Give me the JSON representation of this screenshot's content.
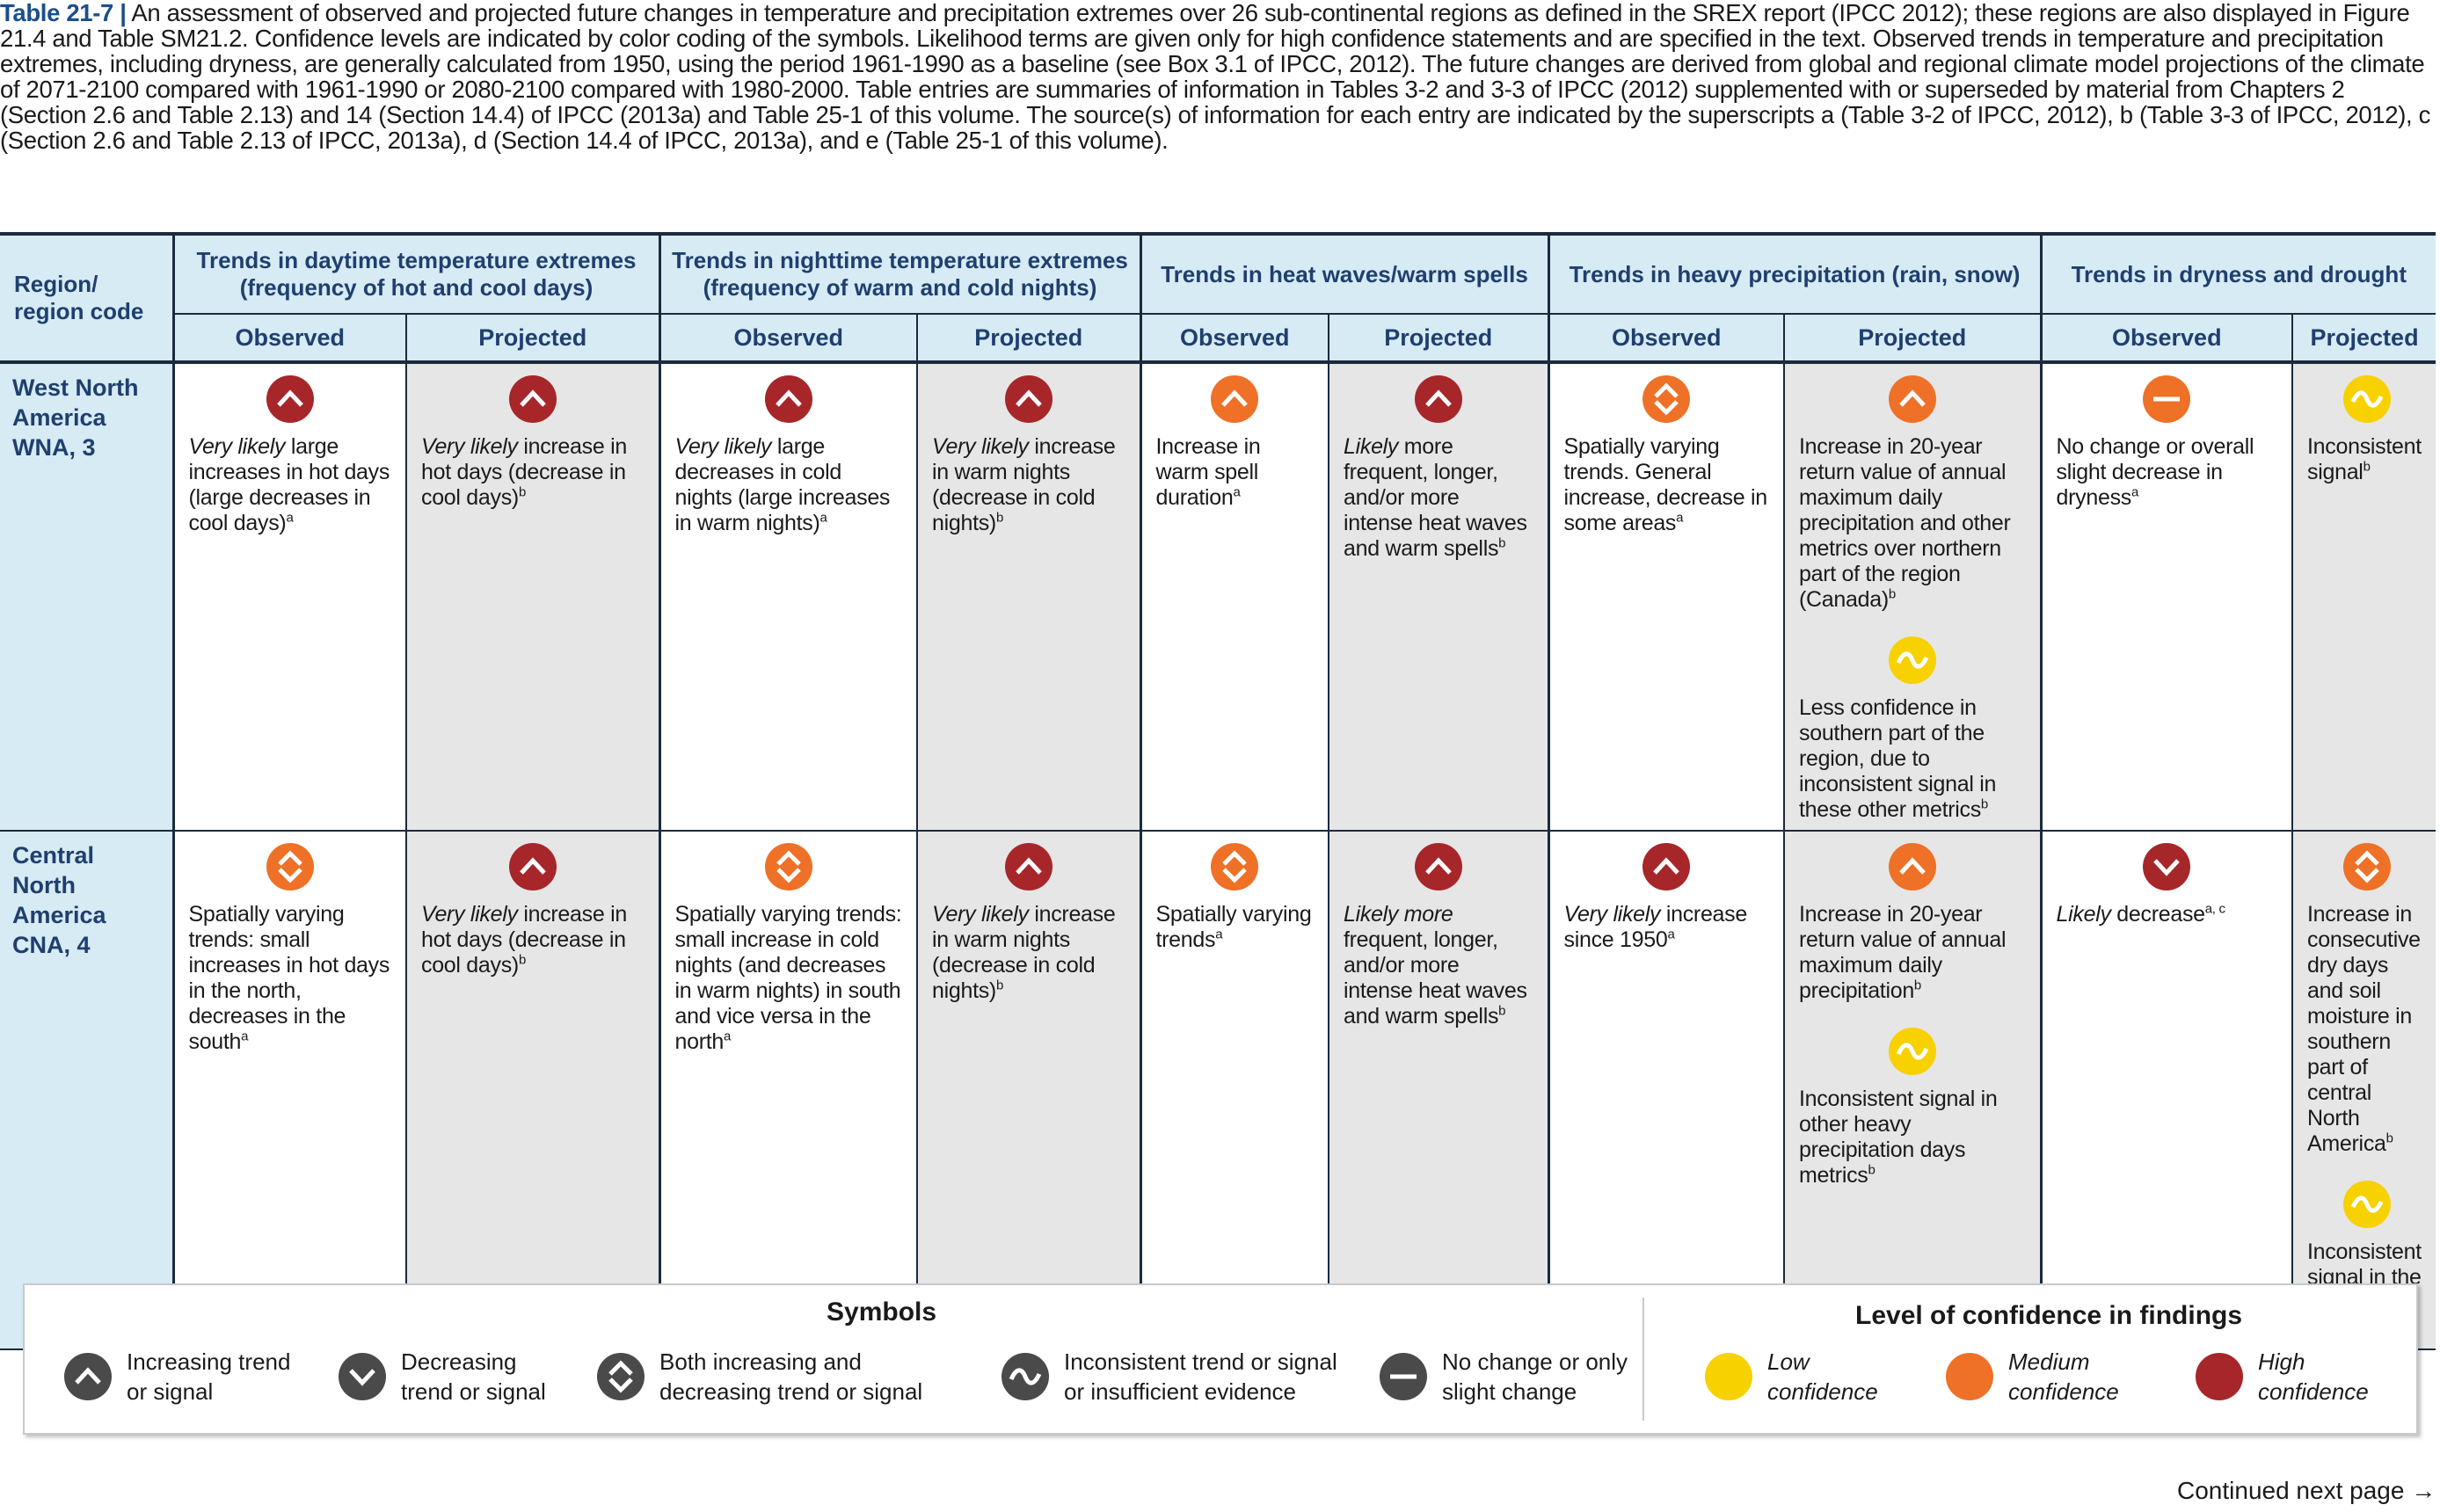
{
  "caption": {
    "label": "Table 21-7 |",
    "text": " An assessment of observed and projected future changes in temperature and precipitation extremes over 26 sub-continental regions as defined in the SREX report (IPCC 2012); these regions are also displayed in Figure 21.4 and Table SM21.2. Confidence levels are indicated by color coding of the symbols. Likelihood terms are given only for high confidence statements and are specified in the text. Observed trends in temperature and precipitation extremes, including dryness, are generally calculated from 1950, using the period 1961-1990 as a baseline (see Box 3.1 of IPCC, 2012). The future changes are derived from global and regional climate model projections of the climate of 2071-2100 compared with 1961-1990 or 2080-2100 compared with 1980-2000. Table entries are summaries of information in Tables 3-2 and 3-3 of IPCC (2012) supplemented with or superseded by material from Chapters 2 (Section 2.6 and Table 2.13) and 14 (Section 14.4) of IPCC (2013a) and Table 25-1 of this volume. The source(s) of information for each entry are indicated by the superscripts a (Table 3-2 of IPCC, 2012), b (Table 3-3 of IPCC, 2012), c (Section 2.6 and Table 2.13 of IPCC, 2013a), d (Section 14.4 of IPCC, 2013a), and e (Table 25-1 of this volume)."
  },
  "colors": {
    "high": "#a7262a",
    "medium": "#ee7127",
    "low": "#f7d100",
    "symbol_dark": "#4a4a4a"
  },
  "header": {
    "region_label": "Region/\nregion code",
    "groups": [
      "Trends in daytime temperature extremes (frequency of hot and cool days)",
      "Trends in nighttime temperature extremes (frequency of warm and cold nights)",
      "Trends in heat waves/warm spells",
      "Trends in heavy precipitation (rain, snow)",
      "Trends in dryness and drought"
    ],
    "observed": "Observed",
    "projected": "Projected"
  },
  "rows": [
    {
      "region": "West North America\nWNA, 3",
      "cells": [
        {
          "blocks": [
            {
              "sym": "up",
              "conf": "high",
              "html": "<i>Very likely</i> large increases in hot days (large decreases in cool days)<sup>a</sup>"
            }
          ]
        },
        {
          "blocks": [
            {
              "sym": "up",
              "conf": "high",
              "html": "<i>Very likely</i> increase in hot days (decrease in cool days)<sup>b</sup>"
            }
          ]
        },
        {
          "blocks": [
            {
              "sym": "up",
              "conf": "high",
              "html": "<i>Very likely</i> large decreases in cold nights (large increases in warm nights)<sup>a</sup>"
            }
          ]
        },
        {
          "blocks": [
            {
              "sym": "up",
              "conf": "high",
              "html": "<i>Very likely</i> increase in warm nights (decrease in cold nights)<sup>b</sup>"
            }
          ]
        },
        {
          "blocks": [
            {
              "sym": "up",
              "conf": "medium",
              "html": "Increase in warm spell duration<sup>a</sup>"
            }
          ]
        },
        {
          "blocks": [
            {
              "sym": "up",
              "conf": "high",
              "html": "<i>Likely</i> more frequent, longer, and/or more intense heat waves and warm spells<sup>b</sup>"
            }
          ]
        },
        {
          "blocks": [
            {
              "sym": "both",
              "conf": "medium",
              "html": "Spatially varying trends. General increase, decrease in some areas<sup>a</sup>"
            }
          ]
        },
        {
          "blocks": [
            {
              "sym": "up",
              "conf": "medium",
              "html": "Increase in 20-year return value of annual maximum daily precipitation and other metrics over northern part of the region (Canada)<sup>b</sup>"
            },
            {
              "sym": "wave",
              "conf": "low",
              "html": "Less confidence in southern part of the region, due to inconsistent signal in these other metrics<sup>b</sup>"
            }
          ]
        },
        {
          "blocks": [
            {
              "sym": "none",
              "conf": "medium",
              "html": "No change or overall slight decrease in dryness<sup>a</sup>"
            }
          ]
        },
        {
          "blocks": [
            {
              "sym": "wave",
              "conf": "low",
              "html": "Inconsistent signal<sup>b</sup>"
            }
          ]
        }
      ]
    },
    {
      "region": "Central North America\nCNA, 4",
      "cells": [
        {
          "blocks": [
            {
              "sym": "both",
              "conf": "medium",
              "html": "Spatially varying trends: small increases in hot days in the north, decreases in the south<sup>a</sup>"
            }
          ]
        },
        {
          "blocks": [
            {
              "sym": "up",
              "conf": "high",
              "html": "<i>Very likely</i> increase in hot days (decrease in cool days)<sup>b</sup>"
            }
          ]
        },
        {
          "blocks": [
            {
              "sym": "both",
              "conf": "medium",
              "html": "Spatially varying trends: small increase in cold nights (and decreases in warm nights) in south and vice versa in the north<sup>a</sup>"
            }
          ]
        },
        {
          "blocks": [
            {
              "sym": "up",
              "conf": "high",
              "html": "<i>Very likely</i> increase in warm nights (decrease in cold nights)<sup>b</sup>"
            }
          ]
        },
        {
          "blocks": [
            {
              "sym": "both",
              "conf": "medium",
              "html": "Spatially varying trends<sup>a</sup>"
            }
          ]
        },
        {
          "blocks": [
            {
              "sym": "up",
              "conf": "high",
              "html": "<i>Likely more</i> frequent, longer, and/or more intense heat waves and warm spells<sup>b</sup>"
            }
          ]
        },
        {
          "blocks": [
            {
              "sym": "up",
              "conf": "high",
              "html": "<i>Very likely</i> increase since 1950<sup>a</sup>"
            }
          ]
        },
        {
          "blocks": [
            {
              "sym": "up",
              "conf": "medium",
              "html": "Increase in 20-year return value of annual maximum daily precipitation<sup>b</sup>"
            },
            {
              "sym": "wave",
              "conf": "low",
              "html": "Inconsistent signal in other heavy precipitation days metrics<sup>b</sup>"
            }
          ]
        },
        {
          "blocks": [
            {
              "sym": "down",
              "conf": "high",
              "html": "<i>Likely</i> decrease<sup>a, c</sup>"
            }
          ]
        },
        {
          "blocks": [
            {
              "sym": "both",
              "conf": "medium",
              "html": "Increase in consecutive dry days and soil moisture in southern part of central North America<sup>b</sup>"
            },
            {
              "sym": "wave",
              "conf": "low",
              "html": "Inconsistent signal in the rest of the region<sup>b</sup>"
            }
          ]
        }
      ]
    }
  ],
  "legend": {
    "symbols_title": "Symbols",
    "confidence_title": "Level of confidence in findings",
    "symbols": [
      {
        "sym": "up",
        "icon": "up-triangle-icon",
        "label": "Increasing trend\nor signal"
      },
      {
        "sym": "down",
        "icon": "down-triangle-icon",
        "label": "Decreasing\ntrend or signal"
      },
      {
        "sym": "both",
        "icon": "up-down-icon",
        "label": "Both increasing and\ndecreasing trend or signal"
      },
      {
        "sym": "wave",
        "icon": "wave-icon",
        "label": "Inconsistent trend or signal\nor insufficient evidence"
      },
      {
        "sym": "none",
        "icon": "minus-icon",
        "label": "No change or only\nslight change"
      }
    ],
    "confidence": [
      {
        "conf": "low",
        "label": "Low\nconfidence"
      },
      {
        "conf": "medium",
        "label": "Medium\nconfidence"
      },
      {
        "conf": "high",
        "label": "High\nconfidence"
      }
    ]
  },
  "continued": "Continued next page →"
}
